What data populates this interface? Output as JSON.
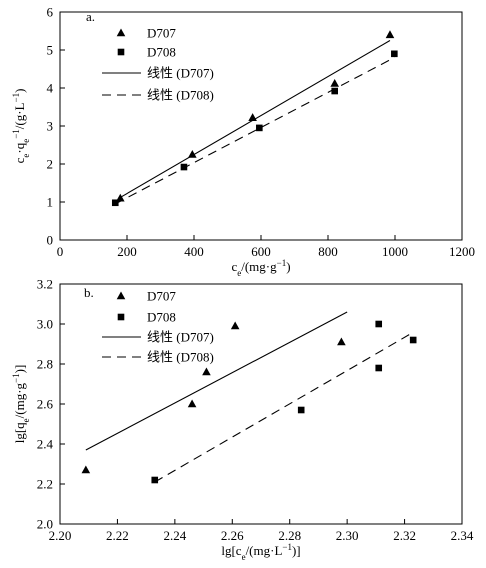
{
  "chart_data": [
    {
      "type": "scatter",
      "panel_label": "a.",
      "title": "",
      "xlabel": "c_e/(mg·g⁻¹)",
      "ylabel": "c_e·q_e⁻¹/(g·L⁻¹)",
      "xlim": [
        0,
        1200
      ],
      "ylim": [
        0,
        6
      ],
      "xticks": [
        0,
        200,
        400,
        600,
        800,
        1000,
        1200
      ],
      "yticks": [
        0,
        1,
        2,
        3,
        4,
        5,
        6
      ],
      "grid": false,
      "legend_position": "top-left",
      "series": [
        {
          "name": "D707",
          "marker": "triangle",
          "x": [
            180,
            395,
            575,
            820,
            985
          ],
          "y": [
            1.1,
            2.25,
            3.22,
            4.12,
            5.4
          ]
        },
        {
          "name": "D708",
          "marker": "square",
          "x": [
            165,
            370,
            595,
            820,
            998
          ],
          "y": [
            0.98,
            1.92,
            2.95,
            3.92,
            4.9
          ]
        }
      ],
      "fits": [
        {
          "name": "线性 (D707)",
          "style": "solid",
          "x": [
            180,
            985
          ],
          "y": [
            1.12,
            5.25
          ]
        },
        {
          "name": "线性 (D708)",
          "style": "dashed",
          "x": [
            165,
            998
          ],
          "y": [
            0.95,
            4.8
          ]
        }
      ]
    },
    {
      "type": "scatter",
      "panel_label": "b.",
      "title": "",
      "xlabel": "lg[c_e/(mg·L⁻¹)]",
      "ylabel": "lg[q_e/(mg·g⁻¹)]",
      "xlim": [
        2.2,
        2.34
      ],
      "ylim": [
        2.0,
        3.2
      ],
      "xticks": [
        "2.20",
        "2.22",
        "2.24",
        "2.26",
        "2.28",
        "2.30",
        "2.32",
        "2.34"
      ],
      "yticks": [
        "2.0",
        "2.2",
        "2.4",
        "2.6",
        "2.8",
        "3.0",
        "3.2"
      ],
      "grid": false,
      "legend_position": "top-center",
      "series": [
        {
          "name": "D707",
          "marker": "triangle",
          "x": [
            2.209,
            2.246,
            2.251,
            2.261,
            2.298
          ],
          "y": [
            2.27,
            2.6,
            2.76,
            2.99,
            2.91
          ]
        },
        {
          "name": "D708",
          "marker": "square",
          "x": [
            2.233,
            2.284,
            2.311,
            2.311,
            2.323
          ],
          "y": [
            2.22,
            2.57,
            2.78,
            3.0,
            2.92
          ]
        }
      ],
      "fits": [
        {
          "name": "线性 (D707)",
          "style": "solid",
          "x": [
            2.209,
            2.3
          ],
          "y": [
            2.37,
            3.06
          ]
        },
        {
          "name": "线性 (D708)",
          "style": "dashed",
          "x": [
            2.233,
            2.322
          ],
          "y": [
            2.21,
            2.95
          ]
        }
      ]
    }
  ]
}
